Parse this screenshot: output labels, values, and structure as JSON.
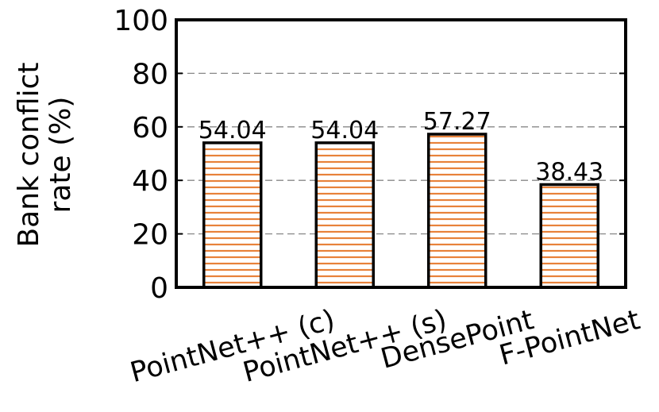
{
  "chart_data": {
    "type": "bar",
    "ylabel": [
      "Bank conflict",
      "rate (%)"
    ],
    "categories": [
      "PointNet++ (c)",
      "PointNet++ (s)",
      "DensePoint",
      "F-PointNet"
    ],
    "values": [
      54.04,
      54.04,
      57.27,
      38.43
    ],
    "color": "#e8823a",
    "ylim": [
      0,
      100
    ],
    "yticks": [
      0,
      20,
      40,
      60,
      80,
      100
    ],
    "grid": true
  }
}
